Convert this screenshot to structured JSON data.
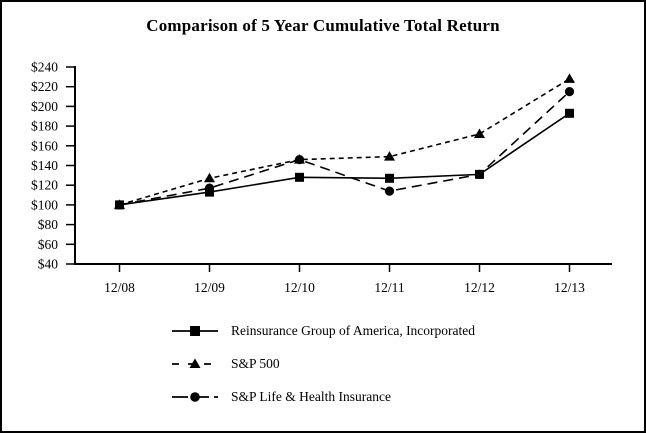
{
  "chart_data": {
    "type": "line",
    "title": "Comparison of 5 Year Cumulative Total Return",
    "x": [
      "12/08",
      "12/09",
      "12/10",
      "12/11",
      "12/12",
      "12/13"
    ],
    "series": [
      {
        "name": "Reinsurance Group of America, Incorporated",
        "marker": "square",
        "line": "solid",
        "values": [
          100,
          113,
          128,
          127,
          131,
          193
        ]
      },
      {
        "name": "S&P 500",
        "marker": "triangle",
        "line": "dashed",
        "values": [
          100,
          127,
          146,
          149,
          172,
          228
        ]
      },
      {
        "name": "S&P Life & Health Insurance",
        "marker": "circle",
        "line": "longdash",
        "values": [
          100,
          117,
          146,
          114,
          131,
          215
        ]
      }
    ],
    "ylim": [
      40,
      240
    ],
    "ytick_step": 20,
    "ytick_prefix": "$",
    "yticks": [
      "$40",
      "$60",
      "$80",
      "$100",
      "$120",
      "$140",
      "$160",
      "$180",
      "$200",
      "$220",
      "$240"
    ],
    "grid": false,
    "legend_position": "bottom-left",
    "colors": {
      "line": "#000000",
      "background": "#ffffff",
      "border": "#000000"
    }
  }
}
